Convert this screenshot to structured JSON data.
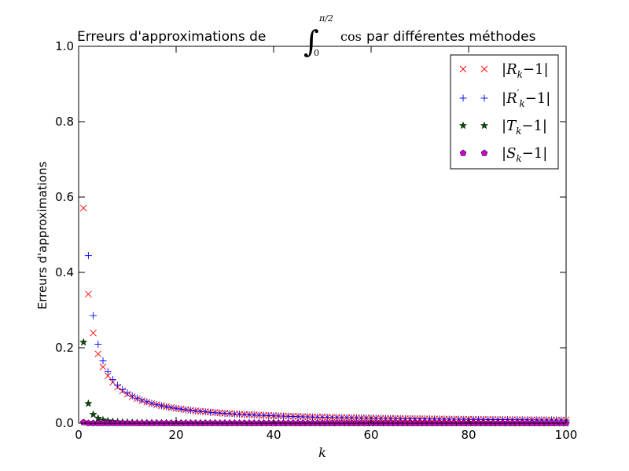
{
  "chart_data": {
    "type": "scatter",
    "title_prefix": "Erreurs d'approximations de",
    "title_integral_lower": "0",
    "title_integral_upper": "π/2",
    "title_function": "cos",
    "title_suffix": "par différentes méthodes",
    "xlabel": "k",
    "ylabel": "Erreurs d'approximations",
    "xlim": [
      0,
      100
    ],
    "ylim": [
      0,
      1.0
    ],
    "xticks": [
      0,
      20,
      40,
      60,
      80,
      100
    ],
    "xtick_labels": [
      "0",
      "20",
      "40",
      "60",
      "80",
      "100"
    ],
    "yticks": [
      0.0,
      0.2,
      0.4,
      0.6,
      0.8,
      1.0
    ],
    "ytick_labels": [
      "0.0",
      "0.2",
      "0.4",
      "0.6",
      "0.8",
      "1.0"
    ],
    "grid": false,
    "legend_position": "top-right",
    "legend": [
      {
        "base": "R",
        "sub": "k",
        "prime": false,
        "suffix": "−1"
      },
      {
        "base": "R",
        "sub": "k",
        "prime": true,
        "suffix": "−1"
      },
      {
        "base": "T",
        "sub": "k",
        "prime": false,
        "suffix": "−1"
      },
      {
        "base": "S",
        "sub": "k",
        "prime": false,
        "suffix": "−1"
      }
    ],
    "series": [
      {
        "marker": "x",
        "color": "#ff0000",
        "x": [
          1,
          2,
          3,
          4,
          5,
          6,
          7,
          8,
          9,
          10,
          11,
          12,
          13,
          14,
          15,
          16,
          17,
          18,
          19,
          20,
          21,
          22,
          23,
          24,
          25,
          26,
          27,
          28,
          29,
          30,
          31,
          32,
          33,
          34,
          35,
          36,
          37,
          38,
          39,
          40,
          41,
          42,
          43,
          44,
          45,
          46,
          47,
          48,
          49,
          50,
          51,
          52,
          53,
          54,
          55,
          56,
          57,
          58,
          59,
          60,
          61,
          62,
          63,
          64,
          65,
          66,
          67,
          68,
          69,
          70,
          71,
          72,
          73,
          74,
          75,
          76,
          77,
          78,
          79,
          80,
          81,
          82,
          83,
          84,
          85,
          86,
          87,
          88,
          89,
          90,
          91,
          92,
          93,
          94,
          95,
          96,
          97,
          98,
          99,
          100
        ],
        "values": [
          0.5708,
          0.3424,
          0.2392,
          0.1837,
          0.1491,
          0.1255,
          0.1084,
          0.0954,
          0.0852,
          0.077,
          0.0702,
          0.0646,
          0.0598,
          0.0556,
          0.052,
          0.0489,
          0.0461,
          0.0435,
          0.0413,
          0.0393,
          0.0374,
          0.0358,
          0.0342,
          0.0328,
          0.0315,
          0.0303,
          0.0292,
          0.0282,
          0.0272,
          0.0263,
          0.0255,
          0.0247,
          0.0239,
          0.0232,
          0.0226,
          0.022,
          0.0214,
          0.0208,
          0.0203,
          0.0198,
          0.0193,
          0.0189,
          0.0184,
          0.018,
          0.0176,
          0.0172,
          0.0169,
          0.0165,
          0.0162,
          0.0159,
          0.0156,
          0.0153,
          0.015,
          0.0147,
          0.0145,
          0.0142,
          0.014,
          0.0137,
          0.0135,
          0.0133,
          0.0131,
          0.0129,
          0.0127,
          0.0125,
          0.0123,
          0.0121,
          0.0119,
          0.0117,
          0.0116,
          0.0114,
          0.0113,
          0.0111,
          0.011,
          0.0108,
          0.0107,
          0.0105,
          0.0104,
          0.0103,
          0.0101,
          0.01,
          0.0099,
          0.0098,
          0.0097,
          0.0096,
          0.0094,
          0.0093,
          0.0092,
          0.0091,
          0.009,
          0.0089,
          0.0088,
          0.0087,
          0.0086,
          0.0086,
          0.0085,
          0.0084,
          0.0083,
          0.0082,
          0.0081,
          0.008
        ]
      },
      {
        "marker": "+",
        "color": "#0000ff",
        "x": [
          2,
          3,
          4,
          5,
          6,
          7,
          8,
          9,
          10,
          11,
          12,
          13,
          14,
          15,
          16,
          17,
          18,
          19,
          20,
          21,
          22,
          23,
          24,
          25,
          26,
          27,
          28,
          29,
          30,
          31,
          32,
          33,
          34,
          35,
          36,
          37,
          38,
          39,
          40,
          41,
          42,
          43,
          44,
          45,
          46,
          47,
          48,
          49,
          50,
          51,
          52,
          53,
          54,
          55,
          56,
          57,
          58,
          59,
          60,
          61,
          62,
          63,
          64,
          65,
          66,
          67,
          68,
          69,
          70,
          71,
          72,
          73,
          74,
          75,
          76,
          77,
          78,
          79,
          80,
          81,
          82,
          83,
          84,
          85,
          86,
          87,
          88,
          89,
          90,
          91,
          92,
          93,
          94,
          95,
          96,
          97,
          98,
          99,
          100
        ],
        "values": [
          0.4445,
          0.2854,
          0.2094,
          0.1651,
          0.1362,
          0.1158,
          0.1007,
          0.0891,
          0.0799,
          0.0724,
          0.0661,
          0.0609,
          0.0564,
          0.0526,
          0.0492,
          0.0462,
          0.0436,
          0.0412,
          0.0391,
          0.0372,
          0.0354,
          0.0339,
          0.0324,
          0.0311,
          0.0299,
          0.0287,
          0.0277,
          0.0267,
          0.0258,
          0.025,
          0.0242,
          0.0235,
          0.0228,
          0.0221,
          0.0215,
          0.0209,
          0.0204,
          0.0199,
          0.0194,
          0.0189,
          0.0185,
          0.0181,
          0.0177,
          0.0173,
          0.0169,
          0.0166,
          0.0162,
          0.0159,
          0.0156,
          0.0153,
          0.015,
          0.0148,
          0.0145,
          0.0143,
          0.014,
          0.0138,
          0.0136,
          0.0134,
          0.0131,
          0.0129,
          0.0127,
          0.0126,
          0.0124,
          0.0122,
          0.012,
          0.0118,
          0.0117,
          0.0115,
          0.0114,
          0.0112,
          0.0111,
          0.0109,
          0.0108,
          0.0107,
          0.0105,
          0.0104,
          0.0103,
          0.0101,
          0.01,
          0.0099,
          0.0098,
          0.0097,
          0.0096,
          0.0095,
          0.0094,
          0.0093,
          0.0092,
          0.0091,
          0.009,
          0.0089,
          0.0088,
          0.0087,
          0.0086,
          0.0085,
          0.0085,
          0.0084,
          0.0083,
          0.0082,
          0.0081
        ]
      },
      {
        "marker": "*",
        "color": "#0b4d0b",
        "x": [
          1,
          2,
          3,
          4,
          5,
          6,
          7,
          8,
          9,
          10,
          11,
          12,
          13,
          14,
          15,
          16,
          17,
          18,
          19,
          20,
          21,
          22,
          23,
          24,
          25,
          26,
          27,
          28,
          29,
          30,
          31,
          32,
          33,
          34,
          35,
          36,
          37,
          38,
          39,
          40,
          41,
          42,
          43,
          44,
          45,
          46,
          47,
          48,
          49,
          50,
          51,
          52,
          53,
          54,
          55,
          56,
          57,
          58,
          59,
          60,
          61,
          62,
          63,
          64,
          65,
          66,
          67,
          68,
          69,
          70,
          71,
          72,
          73,
          74,
          75,
          76,
          77,
          78,
          79,
          80,
          81,
          82,
          83,
          84,
          85,
          86,
          87,
          88,
          89,
          90,
          91,
          92,
          93,
          94,
          95,
          96,
          97,
          98,
          99,
          100
        ],
        "values": [
          0.2146,
          0.0519,
          0.0229,
          0.0129,
          0.0082,
          0.0057,
          0.0042,
          0.0032,
          0.0025,
          0.0021,
          0.0017,
          0.0014,
          0.0012,
          0.0011,
          0.0009,
          0.0008,
          0.0007,
          0.0006,
          0.0006,
          0.0005,
          0.0005,
          0.0004,
          0.0004,
          0.0004,
          0.0003,
          0.0003,
          0.0003,
          0.0003,
          0.0002,
          0.0002,
          0.0002,
          0.0002,
          0.0002,
          0.0002,
          0.0002,
          0.0002,
          0.0002,
          0.0001,
          0.0001,
          0.0001,
          0.0001,
          0.0001,
          0.0001,
          0.0001,
          0.0001,
          0.0001,
          0.0001,
          0.0001,
          0.0001,
          0.0001,
          0.0001,
          0.0001,
          0.0001,
          0.0001,
          0.0001,
          0.0001,
          0.0001,
          0.0001,
          0.0001,
          0.0001,
          0.0001,
          0.0001,
          0.0001,
          0.0001,
          0.0001,
          0.0,
          0.0,
          0.0,
          0.0,
          0.0,
          0.0,
          0.0,
          0.0,
          0.0,
          0.0,
          0.0,
          0.0,
          0.0,
          0.0,
          0.0,
          0.0,
          0.0,
          0.0,
          0.0,
          0.0,
          0.0,
          0.0,
          0.0,
          0.0,
          0.0,
          0.0,
          0.0,
          0.0,
          0.0,
          0.0,
          0.0,
          0.0,
          0.0,
          0.0,
          0.0
        ]
      },
      {
        "marker": "pentagon",
        "color": "#cc00cc",
        "x": [
          1,
          2,
          3,
          4,
          5,
          6,
          7,
          8,
          9,
          10,
          11,
          12,
          13,
          14,
          15,
          16,
          17,
          18,
          19,
          20,
          21,
          22,
          23,
          24,
          25,
          26,
          27,
          28,
          29,
          30,
          31,
          32,
          33,
          34,
          35,
          36,
          37,
          38,
          39,
          40,
          41,
          42,
          43,
          44,
          45,
          46,
          47,
          48,
          49,
          50,
          51,
          52,
          53,
          54,
          55,
          56,
          57,
          58,
          59,
          60,
          61,
          62,
          63,
          64,
          65,
          66,
          67,
          68,
          69,
          70,
          71,
          72,
          73,
          74,
          75,
          76,
          77,
          78,
          79,
          80,
          81,
          82,
          83,
          84,
          85,
          86,
          87,
          88,
          89,
          90,
          91,
          92,
          93,
          94,
          95,
          96,
          97,
          98,
          99,
          100
        ],
        "values": [
          0.0023,
          0.0001,
          0.0,
          0.0,
          0.0,
          0.0,
          0.0,
          0.0,
          0.0,
          0.0,
          0.0,
          0.0,
          0.0,
          0.0,
          0.0,
          0.0,
          0.0,
          0.0,
          0.0,
          0.0,
          0.0,
          0.0,
          0.0,
          0.0,
          0.0,
          0.0,
          0.0,
          0.0,
          0.0,
          0.0,
          0.0,
          0.0,
          0.0,
          0.0,
          0.0,
          0.0,
          0.0,
          0.0,
          0.0,
          0.0,
          0.0,
          0.0,
          0.0,
          0.0,
          0.0,
          0.0,
          0.0,
          0.0,
          0.0,
          0.0,
          0.0,
          0.0,
          0.0,
          0.0,
          0.0,
          0.0,
          0.0,
          0.0,
          0.0,
          0.0,
          0.0,
          0.0,
          0.0,
          0.0,
          0.0,
          0.0,
          0.0,
          0.0,
          0.0,
          0.0,
          0.0,
          0.0,
          0.0,
          0.0,
          0.0,
          0.0,
          0.0,
          0.0,
          0.0,
          0.0,
          0.0,
          0.0,
          0.0,
          0.0,
          0.0,
          0.0,
          0.0,
          0.0,
          0.0,
          0.0,
          0.0,
          0.0,
          0.0,
          0.0,
          0.0,
          0.0,
          0.0,
          0.0,
          0.0,
          0.0
        ]
      }
    ]
  }
}
